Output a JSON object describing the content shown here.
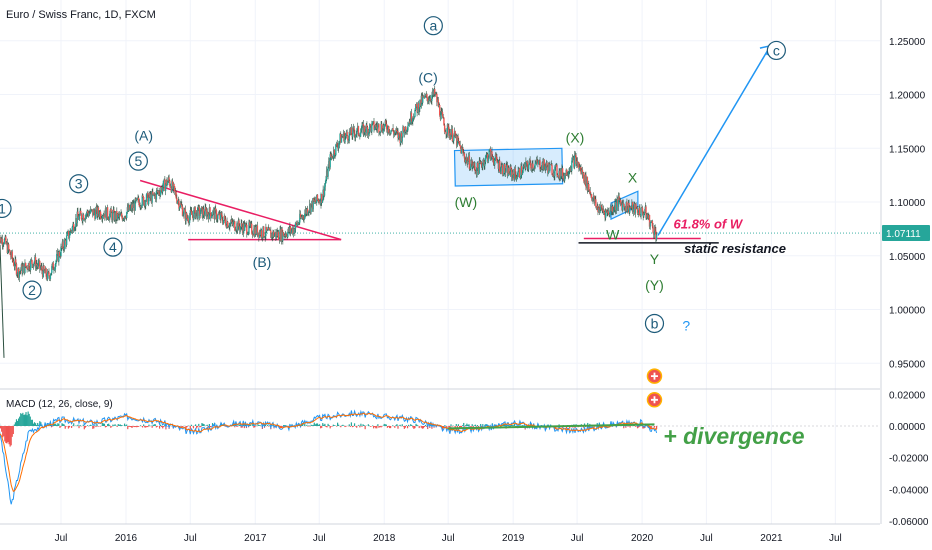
{
  "chart_title": "Euro / Swiss Franc, 1D, FXCM",
  "price_badge": "1.07111",
  "colors": {
    "bull": "#26a69a",
    "bear": "#ef5350",
    "candle": "#2a6a4a",
    "pink": "#e91e63",
    "blue": "#2196f3",
    "green": "#43a047",
    "wave_label": "#1e5b7a",
    "wave_label_green": "#2e7d32",
    "badge_bg": "#26a69a"
  },
  "chart_data": [
    {
      "type": "line",
      "series": [
        {
          "name": "",
          "x": [
            "2015-01-20",
            "2015-03-01",
            "2015-04-15",
            "2015-05-25",
            "2015-07-01",
            "2015-08-15",
            "2015-09-15",
            "2015-11-01",
            "2015-12-15",
            "2016-02-05",
            "2016-03-20",
            "2016-05-01",
            "2016-06-20",
            "2016-07-15",
            "2016-09-01",
            "2016-10-20",
            "2016-12-15",
            "2017-02-10",
            "2017-03-20",
            "2017-04-20",
            "2017-06-01",
            "2017-07-10",
            "2017-08-01",
            "2017-09-01",
            "2017-10-15",
            "2017-12-01",
            "2018-01-10",
            "2018-02-15",
            "2018-03-20",
            "2018-04-20",
            "2018-05-25",
            "2018-06-20",
            "2018-07-20",
            "2018-08-20",
            "2018-09-20",
            "2018-10-25",
            "2018-12-05",
            "2019-01-10",
            "2019-02-15",
            "2019-03-20",
            "2019-04-25",
            "2019-05-25",
            "2019-06-25",
            "2019-07-25",
            "2019-08-25",
            "2019-09-25",
            "2019-10-25",
            "2019-11-25",
            "2020-01-10",
            "2020-02-10"
          ],
          "y": [
            1.065,
            1.035,
            1.045,
            1.03,
            1.055,
            1.085,
            1.09,
            1.09,
            1.085,
            1.1,
            1.105,
            1.12,
            1.085,
            1.09,
            1.09,
            1.08,
            1.075,
            1.07,
            1.07,
            1.075,
            1.095,
            1.105,
            1.14,
            1.16,
            1.165,
            1.17,
            1.17,
            1.16,
            1.18,
            1.195,
            1.2,
            1.17,
            1.16,
            1.14,
            1.13,
            1.145,
            1.13,
            1.125,
            1.135,
            1.135,
            1.13,
            1.125,
            1.14,
            1.12,
            1.095,
            1.09,
            1.1,
            1.095,
            1.09,
            1.07
          ]
        }
      ],
      "ylim": [
        0.925,
        1.285
      ],
      "y_ticks": [
        "1.25000",
        "1.20000",
        "1.15000",
        "1.10000",
        "1.05000",
        "1.00000",
        "0.95000"
      ],
      "y_tick_values": [
        1.25,
        1.2,
        1.15,
        1.1,
        1.05,
        1.0,
        0.95
      ],
      "x_ticks": [
        "Jul",
        "2016",
        "Jul",
        "2017",
        "Jul",
        "2018",
        "Jul",
        "2019",
        "Jul",
        "2020",
        "Jul",
        "2021",
        "Jul"
      ],
      "x_tick_dates": [
        "2015-07-01",
        "2016-01-01",
        "2016-07-01",
        "2017-01-01",
        "2017-07-01",
        "2018-01-01",
        "2018-07-01",
        "2019-01-01",
        "2019-07-01",
        "2020-01-01",
        "2020-07-01",
        "2021-01-01",
        "2021-07-01"
      ],
      "current_price": 1.07111,
      "annotations": [
        {
          "text": "1",
          "date": "2015-01-15",
          "y": 1.094,
          "circled": true,
          "color": "#1e5b7a"
        },
        {
          "text": "2",
          "date": "2015-04-10",
          "y": 1.018,
          "circled": true,
          "color": "#1e5b7a"
        },
        {
          "text": "3",
          "date": "2015-08-20",
          "y": 1.117,
          "circled": true,
          "color": "#1e5b7a"
        },
        {
          "text": "4",
          "date": "2015-11-25",
          "y": 1.058,
          "circled": true,
          "color": "#1e5b7a"
        },
        {
          "text": "5",
          "date": "2016-02-05",
          "y": 1.138,
          "circled": true,
          "color": "#1e5b7a"
        },
        {
          "text": "(A)",
          "date": "2016-02-20",
          "y": 1.162,
          "circled": false,
          "color": "#1e5b7a"
        },
        {
          "text": "(B)",
          "date": "2017-01-20",
          "y": 1.044,
          "circled": false,
          "color": "#1e5b7a"
        },
        {
          "text": "a",
          "date": "2018-05-20",
          "y": 1.264,
          "circled": true,
          "color": "#1e5b7a"
        },
        {
          "text": "(C)",
          "date": "2018-05-05",
          "y": 1.216,
          "circled": false,
          "color": "#1e5b7a"
        },
        {
          "text": "(W)",
          "date": "2018-08-20",
          "y": 1.1,
          "circled": false,
          "color": "#2e7d32"
        },
        {
          "text": "(X)",
          "date": "2019-06-25",
          "y": 1.16,
          "circled": false,
          "color": "#2e7d32"
        },
        {
          "text": "X",
          "date": "2019-12-05",
          "y": 1.123,
          "circled": false,
          "color": "#2e7d32"
        },
        {
          "text": "W",
          "date": "2019-10-10",
          "y": 1.07,
          "circled": false,
          "color": "#2e7d32"
        },
        {
          "text": "Y",
          "date": "2020-02-05",
          "y": 1.047,
          "circled": false,
          "color": "#2e7d32"
        },
        {
          "text": "(Y)",
          "date": "2020-02-05",
          "y": 1.023,
          "circled": false,
          "color": "#2e7d32"
        },
        {
          "text": "b",
          "date": "2020-02-05",
          "y": 0.987,
          "circled": true,
          "color": "#1e5b7a"
        },
        {
          "text": "?",
          "date": "2020-05-05",
          "y": 0.985,
          "circled": false,
          "color": "#2196f3"
        },
        {
          "text": "c",
          "date": "2021-01-15",
          "y": 1.241,
          "circled": true,
          "color": "#1e5b7a"
        },
        {
          "text": "61.8% of W",
          "date": "2020-07-05",
          "y": 1.08,
          "circled": false,
          "color": "#e91e63"
        },
        {
          "text": "static resistance",
          "date": "2020-09-20",
          "y": 1.057,
          "circled": false,
          "color": "#131722"
        }
      ]
    },
    {
      "type": "line",
      "title": "MACD (12, 26, close, 9)",
      "series": [
        {
          "name": "",
          "x": [
            "2015-01-10",
            "2015-02-10",
            "2015-04-01",
            "2015-07-01",
            "2015-10-01",
            "2016-01-01",
            "2016-04-01",
            "2016-07-01",
            "2016-10-01",
            "2017-01-01",
            "2017-04-01",
            "2017-07-01",
            "2017-10-01",
            "2018-01-01",
            "2018-04-01",
            "2018-07-01",
            "2018-10-01",
            "2019-01-01",
            "2019-04-01",
            "2019-07-01",
            "2019-10-01",
            "2020-01-01",
            "2020-02-10"
          ],
          "y": [
            -0.005,
            -0.05,
            -0.003,
            0.004,
            0.002,
            0.006,
            0.003,
            -0.004,
            0.001,
            0.002,
            -0.001,
            0.005,
            0.008,
            0.006,
            0.004,
            -0.003,
            -0.002,
            0.002,
            -0.001,
            -0.003,
            0.001,
            0.002,
            -0.004
          ]
        }
      ],
      "ylim": [
        -0.062,
        0.021
      ],
      "y_ticks": [
        "0.02000",
        "0.00000",
        "-0.02000",
        "-0.04000",
        "-0.06000"
      ],
      "y_tick_values": [
        0.02,
        0.0,
        -0.02,
        -0.04,
        -0.06
      ],
      "annotations": [
        {
          "text": "+ divergence",
          "color": "#43a047"
        }
      ]
    }
  ]
}
